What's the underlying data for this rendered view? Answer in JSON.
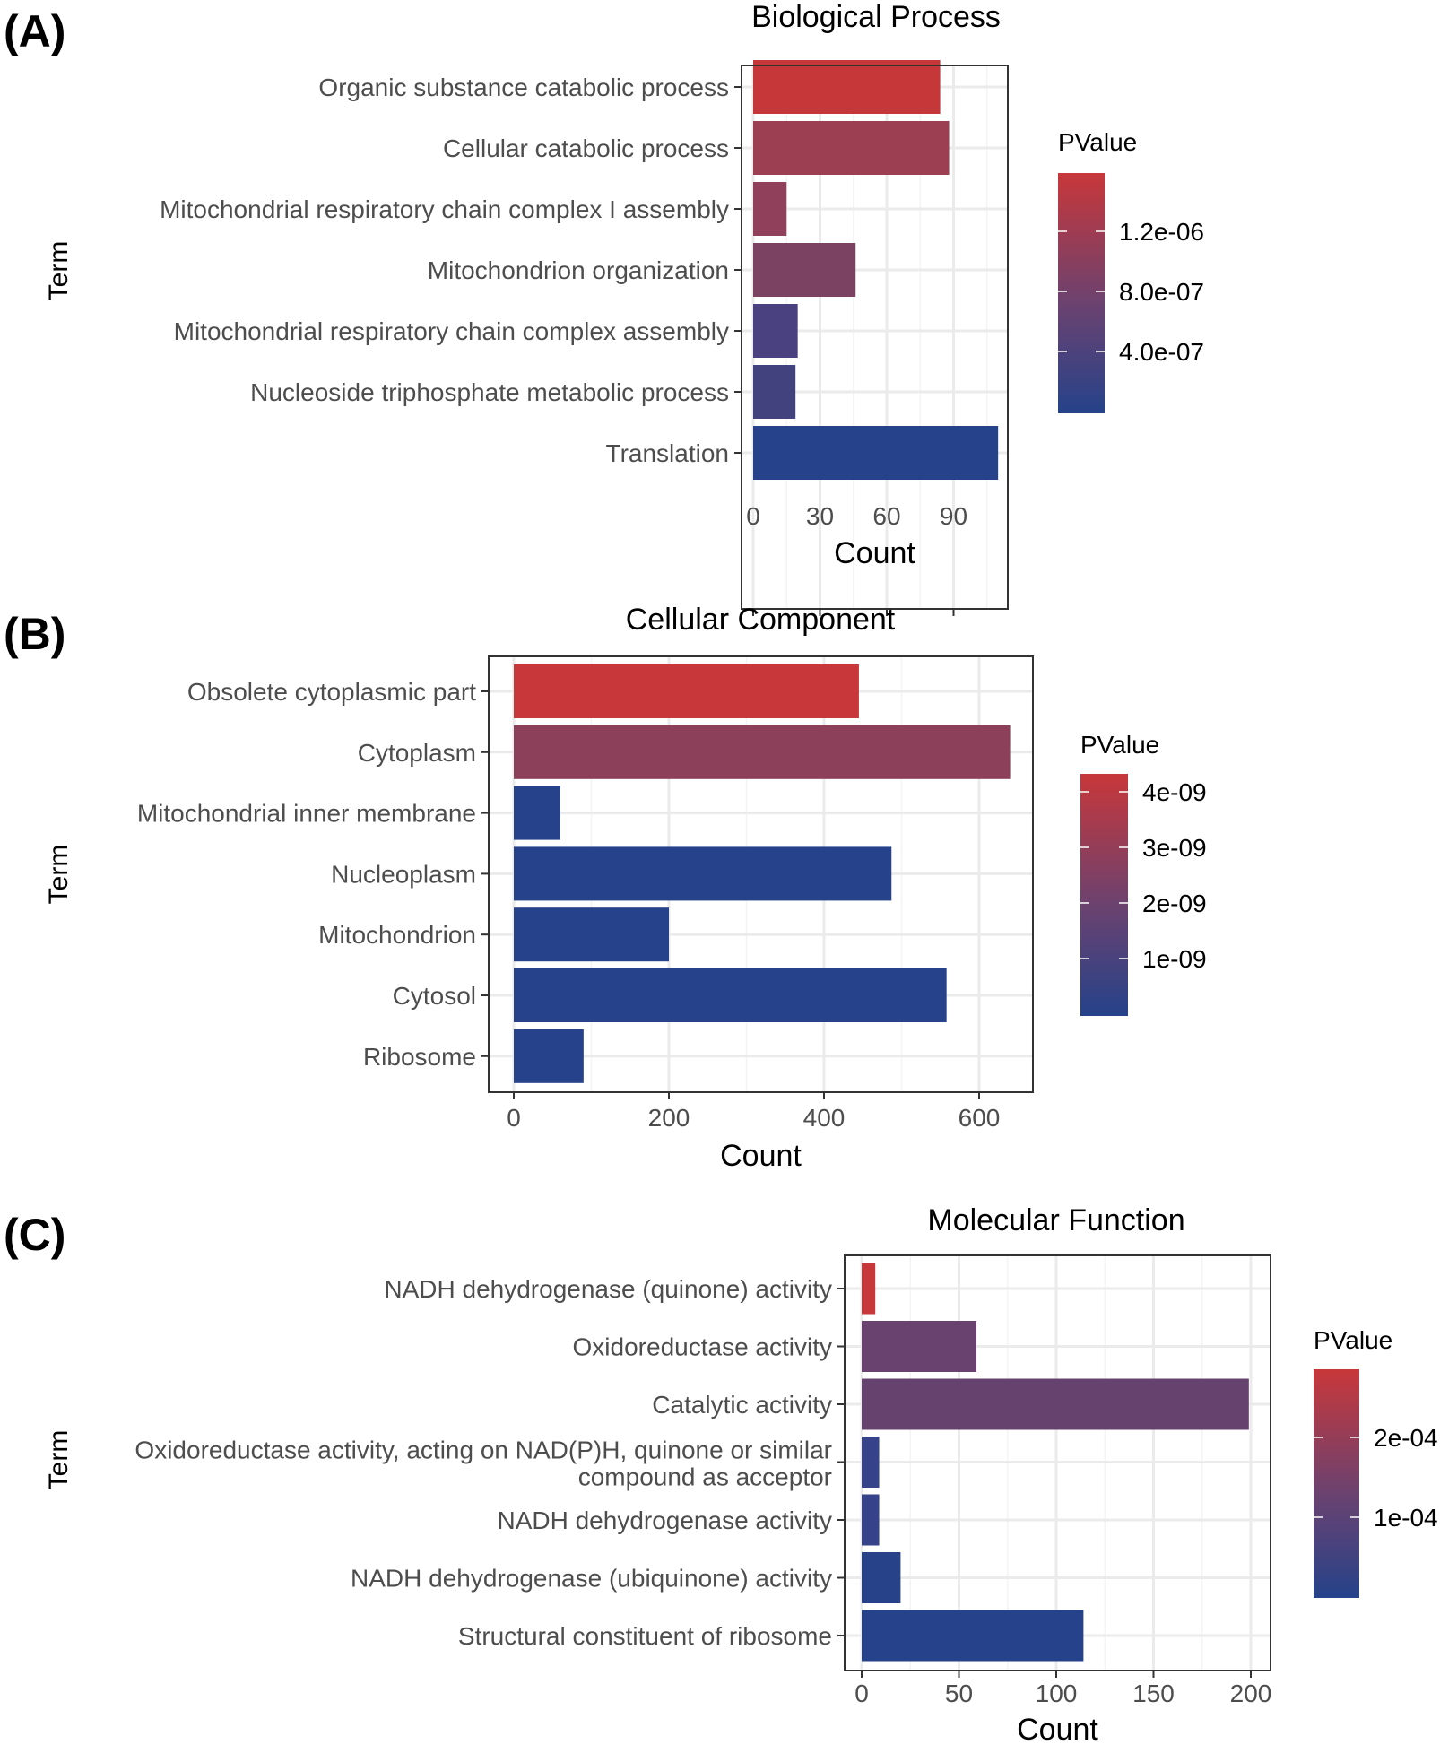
{
  "chart_data": [
    {
      "type": "bar",
      "orientation": "horizontal",
      "panel_label": "(A)",
      "title": "Biological Process",
      "xlabel": "Count",
      "ylabel": "Term",
      "xlim": [
        0,
        115
      ],
      "xticks": [
        "0",
        "30",
        "60",
        "90"
      ],
      "categories": [
        "Organic substance catabolic process",
        "Cellular catabolic process",
        "Mitochondrial respiratory chain complex I assembly",
        "Mitochondrion organization",
        "Mitochondrial respiratory chain complex assembly",
        "Nucleoside triphosphate metabolic process",
        "Translation"
      ],
      "values": [
        84,
        88,
        15,
        46,
        20,
        19,
        110
      ],
      "colors": [
        "#c6373a",
        "#9c3f52",
        "#90405a",
        "#7c4262",
        "#4a4280",
        "#42427f",
        "#25428a"
      ],
      "legend": {
        "title": "PValue",
        "ticks": [
          "1.2e-06",
          "8.0e-07",
          "4.0e-07"
        ],
        "position": "right",
        "low_color": "#25428a",
        "high_color": "#c8373a"
      }
    },
    {
      "type": "bar",
      "orientation": "horizontal",
      "panel_label": "(B)",
      "title": "Cellular Component",
      "xlabel": "Count",
      "ylabel": "Term",
      "xlim": [
        0,
        670
      ],
      "xticks": [
        "0",
        "200",
        "400",
        "600"
      ],
      "categories": [
        "Obsolete cytoplasmic part",
        "Cytoplasm",
        "Mitochondrial inner membrane",
        "Nucleoplasm",
        "Mitochondrion",
        "Cytosol",
        "Ribosome"
      ],
      "values": [
        445,
        640,
        60,
        487,
        200,
        558,
        90
      ],
      "colors": [
        "#c8373a",
        "#8c405a",
        "#25428a",
        "#25428a",
        "#25428a",
        "#25428a",
        "#25428a"
      ],
      "legend": {
        "title": "PValue",
        "ticks": [
          "4e-09",
          "3e-09",
          "2e-09",
          "1e-09"
        ],
        "position": "right",
        "low_color": "#25428a",
        "high_color": "#c8373a"
      }
    },
    {
      "type": "bar",
      "orientation": "horizontal",
      "panel_label": "(C)",
      "title": "Molecular Function",
      "xlabel": "Count",
      "ylabel": "Term",
      "xlim": [
        0,
        209
      ],
      "xticks": [
        "0",
        "50",
        "100",
        "150",
        "200"
      ],
      "categories": [
        "NADH dehydrogenase (quinone) activity",
        "Oxidoreductase activity",
        "Catalytic activity",
        "Oxidoreductase activity, acting on NAD(P)H, quinone or similar\ncompound as acceptor",
        "NADH dehydrogenase activity",
        "NADH dehydrogenase (ubiquinone) activity",
        "Structural constituent of ribosome"
      ],
      "values": [
        7,
        59,
        199,
        9,
        9,
        20,
        114
      ],
      "colors": [
        "#c8373a",
        "#6a4270",
        "#66436f",
        "#36428a",
        "#36428a",
        "#274289",
        "#25428a"
      ],
      "legend": {
        "title": "PValue",
        "ticks": [
          "2e-04",
          "1e-04"
        ],
        "position": "right",
        "low_color": "#25428a",
        "high_color": "#c8373a"
      }
    }
  ]
}
